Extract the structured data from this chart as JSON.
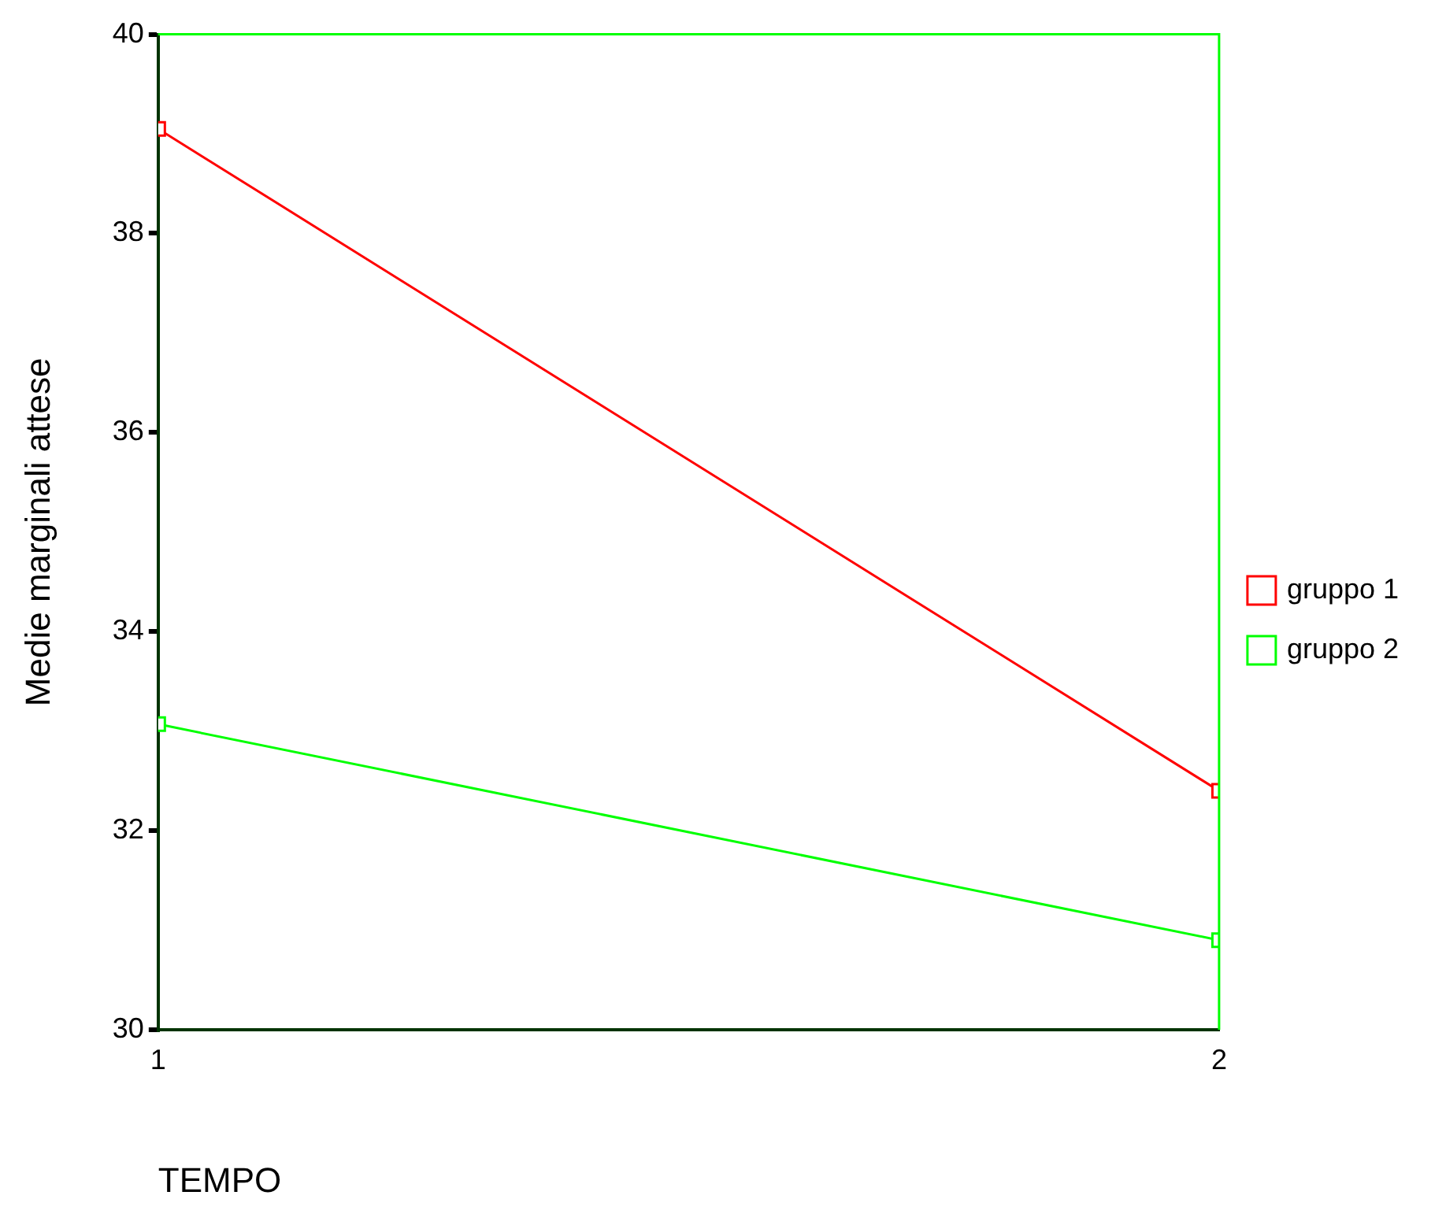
{
  "chart_data": {
    "type": "line",
    "xlabel": "TEMPO",
    "ylabel": "Medie marginali attese",
    "x": [
      1,
      2
    ],
    "xlim": [
      1,
      2
    ],
    "xticks": [
      1,
      2
    ],
    "ylim": [
      30,
      40
    ],
    "yticks": [
      30,
      32,
      34,
      36,
      38,
      40
    ],
    "series": [
      {
        "name": "gruppo 1",
        "color": "#ff0000",
        "values": [
          39.05,
          32.4
        ]
      },
      {
        "name": "gruppo 2",
        "color": "#00ff00",
        "values": [
          33.07,
          30.9
        ]
      }
    ],
    "marker": "square",
    "line_style": "solid",
    "grid": false,
    "legend": "right"
  }
}
